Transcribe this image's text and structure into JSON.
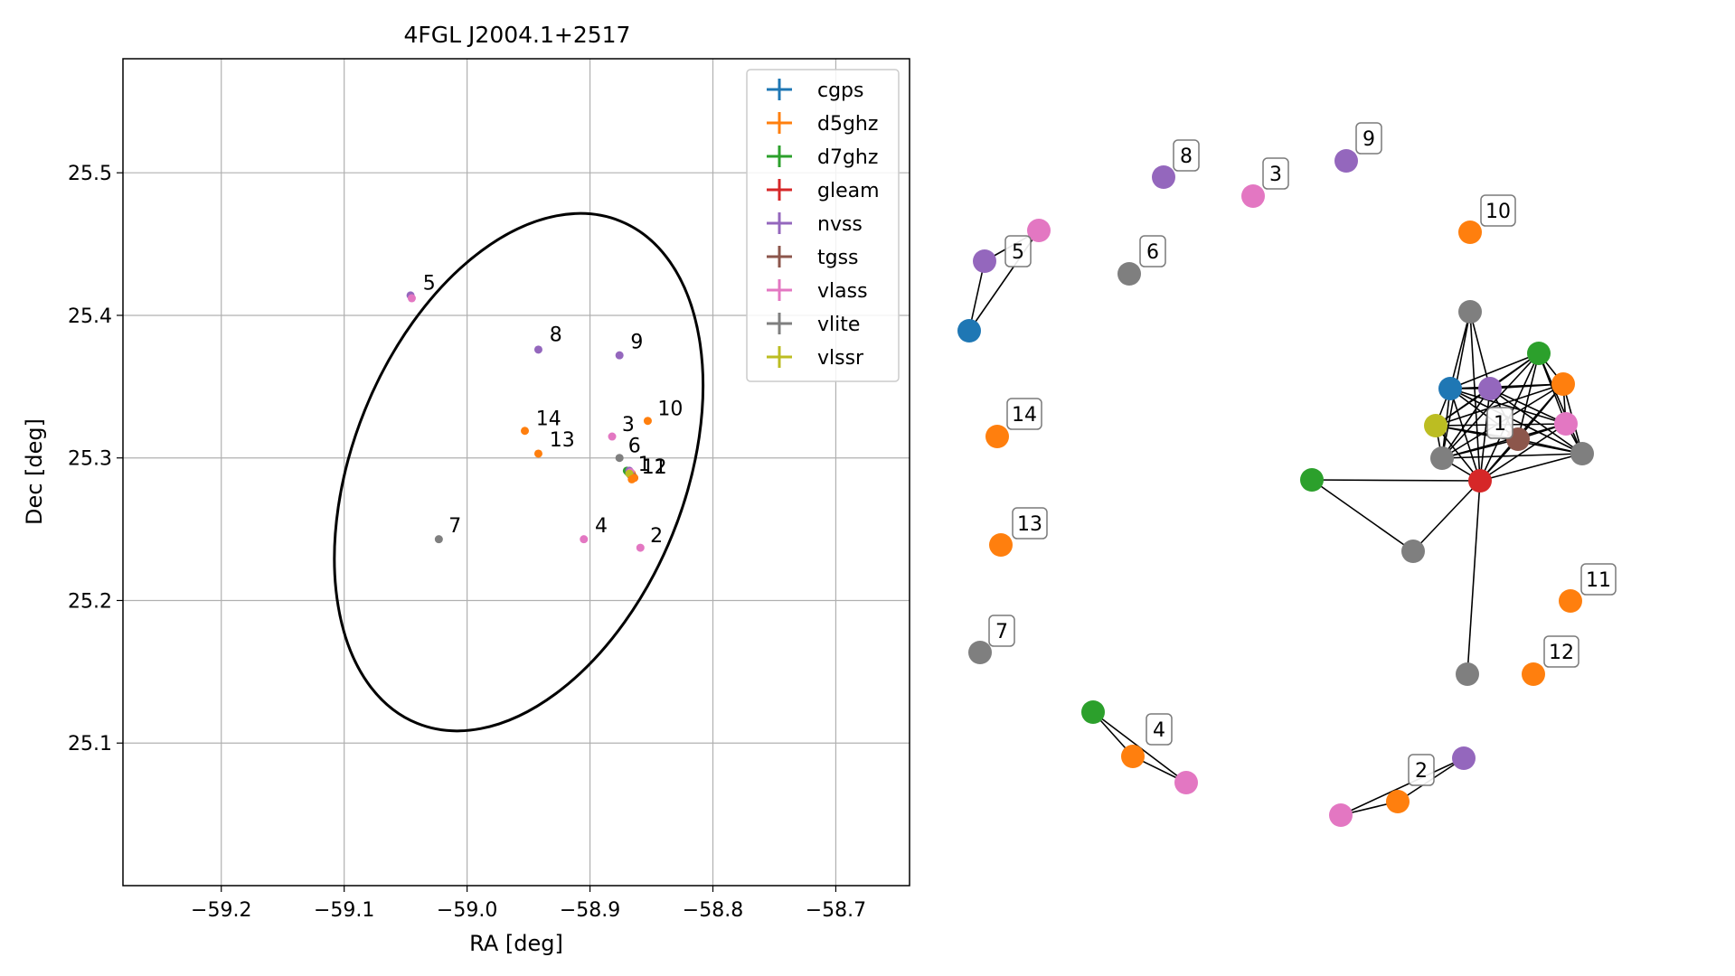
{
  "chart_data": [
    {
      "type": "scatter",
      "title": "4FGL J2004.1+2517",
      "xlabel": "RA [deg]",
      "ylabel": "Dec [deg]",
      "xlim": [
        -59.28,
        -58.64
      ],
      "ylim": [
        25.0,
        25.58
      ],
      "grid": true,
      "legend_position": "top-right",
      "xticks": [
        -59.2,
        -59.1,
        -59.0,
        -58.9,
        -58.8,
        -58.7
      ],
      "xtick_labels": [
        "−59.2",
        "−59.1",
        "−59.0",
        "−58.9",
        "−58.8",
        "−58.7"
      ],
      "yticks": [
        25.1,
        25.2,
        25.3,
        25.4,
        25.5
      ],
      "ytick_labels": [
        "25.1",
        "25.2",
        "25.3",
        "25.4",
        "25.5"
      ],
      "series": [
        {
          "name": "cgps",
          "color": "#1f77b4"
        },
        {
          "name": "d5ghz",
          "color": "#ff7f0e"
        },
        {
          "name": "d7ghz",
          "color": "#2ca02c"
        },
        {
          "name": "gleam",
          "color": "#d62728"
        },
        {
          "name": "nvss",
          "color": "#9467bd"
        },
        {
          "name": "tgss",
          "color": "#8c564b"
        },
        {
          "name": "vlass",
          "color": "#e377c2"
        },
        {
          "name": "vlite",
          "color": "#7f7f7f"
        },
        {
          "name": "vlssr",
          "color": "#bcbd22"
        }
      ],
      "points": [
        {
          "x": -58.869,
          "y": 25.29,
          "series": "cgps"
        },
        {
          "x": -58.866,
          "y": 25.289,
          "series": "d5ghz"
        },
        {
          "x": -58.87,
          "y": 25.291,
          "series": "d7ghz"
        },
        {
          "x": -58.864,
          "y": 25.286,
          "series": "gleam"
        },
        {
          "x": -58.868,
          "y": 25.291,
          "series": "nvss"
        },
        {
          "x": -58.865,
          "y": 25.287,
          "series": "tgss"
        },
        {
          "x": -58.867,
          "y": 25.29,
          "series": "vlass"
        },
        {
          "x": -58.867,
          "y": 25.288,
          "series": "vlite"
        },
        {
          "x": -58.868,
          "y": 25.289,
          "series": "vlssr"
        },
        {
          "x": -59.046,
          "y": 25.414,
          "series": "nvss"
        },
        {
          "x": -59.045,
          "y": 25.412,
          "series": "vlass"
        },
        {
          "x": -58.942,
          "y": 25.376,
          "series": "nvss"
        },
        {
          "x": -58.876,
          "y": 25.372,
          "series": "nvss"
        },
        {
          "x": -58.853,
          "y": 25.326,
          "series": "d5ghz"
        },
        {
          "x": -58.953,
          "y": 25.319,
          "series": "d5ghz"
        },
        {
          "x": -58.942,
          "y": 25.303,
          "series": "d5ghz"
        },
        {
          "x": -58.882,
          "y": 25.315,
          "series": "vlass"
        },
        {
          "x": -58.876,
          "y": 25.3,
          "series": "vlite"
        },
        {
          "x": -58.866,
          "y": 25.285,
          "series": "d5ghz"
        },
        {
          "x": -58.864,
          "y": 25.286,
          "series": "d5ghz"
        },
        {
          "x": -59.023,
          "y": 25.243,
          "series": "vlite"
        },
        {
          "x": -58.905,
          "y": 25.243,
          "series": "vlass"
        },
        {
          "x": -58.859,
          "y": 25.237,
          "series": "vlass"
        }
      ],
      "point_labels": [
        {
          "text": "5",
          "x": -59.036,
          "y": 25.418
        },
        {
          "text": "8",
          "x": -58.933,
          "y": 25.382
        },
        {
          "text": "9",
          "x": -58.867,
          "y": 25.377
        },
        {
          "text": "10",
          "x": -58.845,
          "y": 25.33
        },
        {
          "text": "14",
          "x": -58.944,
          "y": 25.323
        },
        {
          "text": "3",
          "x": -58.874,
          "y": 25.319
        },
        {
          "text": "13",
          "x": -58.933,
          "y": 25.308
        },
        {
          "text": "6",
          "x": -58.869,
          "y": 25.304
        },
        {
          "text": "1",
          "x": -58.861,
          "y": 25.291
        },
        {
          "text": "11",
          "x": -58.858,
          "y": 25.289
        },
        {
          "text": "12",
          "x": -58.858,
          "y": 25.289
        },
        {
          "text": "7",
          "x": -59.015,
          "y": 25.248
        },
        {
          "text": "4",
          "x": -58.896,
          "y": 25.248
        },
        {
          "text": "2",
          "x": -58.851,
          "y": 25.241
        }
      ],
      "ellipse": {
        "center_ra": -58.958,
        "center_dec": 25.29,
        "semi_ra": 0.135,
        "semi_dec": 0.19,
        "tilt_deg": 22
      }
    },
    {
      "type": "network",
      "nodes": [
        {
          "id": "cgps-1",
          "series": "cgps"
        },
        {
          "id": "cgps-5",
          "series": "cgps"
        },
        {
          "id": "d5-1",
          "series": "d5ghz"
        },
        {
          "id": "d5-10",
          "series": "d5ghz"
        },
        {
          "id": "d5-14",
          "series": "d5ghz"
        },
        {
          "id": "d5-13",
          "series": "d5ghz"
        },
        {
          "id": "d5-11",
          "series": "d5ghz"
        },
        {
          "id": "d5-12",
          "series": "d5ghz"
        },
        {
          "id": "d5-4",
          "series": "d5ghz"
        },
        {
          "id": "d5-2",
          "series": "d5ghz"
        },
        {
          "id": "d7-1",
          "series": "d7ghz"
        },
        {
          "id": "d7-1b",
          "series": "d7ghz"
        },
        {
          "id": "d7-4",
          "series": "d7ghz"
        },
        {
          "id": "gleam-1",
          "series": "gleam"
        },
        {
          "id": "nvss-1",
          "series": "nvss"
        },
        {
          "id": "nvss-5",
          "series": "nvss"
        },
        {
          "id": "nvss-8",
          "series": "nvss"
        },
        {
          "id": "nvss-9",
          "series": "nvss"
        },
        {
          "id": "nvss-2",
          "series": "nvss"
        },
        {
          "id": "tgss-1",
          "series": "tgss"
        },
        {
          "id": "vlass-1",
          "series": "vlass"
        },
        {
          "id": "vlass-5",
          "series": "vlass"
        },
        {
          "id": "vlass-3",
          "series": "vlass"
        },
        {
          "id": "vlass-4",
          "series": "vlass"
        },
        {
          "id": "vlass-2",
          "series": "vlass"
        },
        {
          "id": "vlite-1a",
          "series": "vlite"
        },
        {
          "id": "vlite-1b",
          "series": "vlite"
        },
        {
          "id": "vlite-1c",
          "series": "vlite"
        },
        {
          "id": "vlite-1d",
          "series": "vlite"
        },
        {
          "id": "vlite-1e",
          "series": "vlite"
        },
        {
          "id": "vlite-6",
          "series": "vlite"
        },
        {
          "id": "vlite-7",
          "series": "vlite"
        },
        {
          "id": "vlssr-1",
          "series": "vlssr"
        }
      ],
      "node_labels": [
        "1",
        "2",
        "3",
        "4",
        "5",
        "6",
        "7",
        "8",
        "9",
        "10",
        "11",
        "12",
        "13",
        "14"
      ],
      "edges": [
        [
          "cgps-5",
          "nvss-5"
        ],
        [
          "cgps-5",
          "vlass-5"
        ],
        [
          "nvss-5",
          "vlass-5"
        ],
        [
          "d7-4",
          "d5-4"
        ],
        [
          "d7-4",
          "vlass-4"
        ],
        [
          "d5-4",
          "vlass-4"
        ],
        [
          "vlass-2",
          "d5-2"
        ],
        [
          "vlass-2",
          "nvss-2"
        ],
        [
          "d5-2",
          "nvss-2"
        ],
        [
          "gleam-1",
          "cgps-1"
        ],
        [
          "gleam-1",
          "nvss-1"
        ],
        [
          "gleam-1",
          "d7-1"
        ],
        [
          "gleam-1",
          "d5-1"
        ],
        [
          "gleam-1",
          "vlass-1"
        ],
        [
          "gleam-1",
          "vlssr-1"
        ],
        [
          "gleam-1",
          "tgss-1"
        ],
        [
          "gleam-1",
          "vlite-1a"
        ],
        [
          "gleam-1",
          "vlite-1b"
        ],
        [
          "gleam-1",
          "vlite-1c"
        ],
        [
          "gleam-1",
          "vlite-1d"
        ],
        [
          "gleam-1",
          "vlite-1e"
        ],
        [
          "gleam-1",
          "d7-1b"
        ],
        [
          "vlite-1d",
          "d7-1b"
        ],
        [
          "cgps-1",
          "nvss-1"
        ],
        [
          "cgps-1",
          "d7-1"
        ],
        [
          "cgps-1",
          "d5-1"
        ],
        [
          "cgps-1",
          "vlass-1"
        ],
        [
          "cgps-1",
          "vlssr-1"
        ],
        [
          "cgps-1",
          "tgss-1"
        ],
        [
          "cgps-1",
          "vlite-1a"
        ],
        [
          "cgps-1",
          "vlite-1b"
        ],
        [
          "cgps-1",
          "vlite-1c"
        ],
        [
          "nvss-1",
          "d7-1"
        ],
        [
          "nvss-1",
          "d5-1"
        ],
        [
          "nvss-1",
          "vlass-1"
        ],
        [
          "nvss-1",
          "vlssr-1"
        ],
        [
          "nvss-1",
          "tgss-1"
        ],
        [
          "nvss-1",
          "vlite-1a"
        ],
        [
          "nvss-1",
          "vlite-1b"
        ],
        [
          "nvss-1",
          "vlite-1c"
        ],
        [
          "d7-1",
          "d5-1"
        ],
        [
          "d7-1",
          "vlass-1"
        ],
        [
          "d7-1",
          "vlssr-1"
        ],
        [
          "d7-1",
          "tgss-1"
        ],
        [
          "d7-1",
          "vlite-1b"
        ],
        [
          "d7-1",
          "vlite-1c"
        ],
        [
          "d5-1",
          "vlass-1"
        ],
        [
          "d5-1",
          "vlssr-1"
        ],
        [
          "d5-1",
          "tgss-1"
        ],
        [
          "d5-1",
          "vlite-1b"
        ],
        [
          "d5-1",
          "vlite-1c"
        ],
        [
          "vlass-1",
          "vlssr-1"
        ],
        [
          "vlass-1",
          "tgss-1"
        ],
        [
          "vlass-1",
          "vlite-1b"
        ],
        [
          "vlass-1",
          "vlite-1c"
        ],
        [
          "vlssr-1",
          "tgss-1"
        ],
        [
          "vlssr-1",
          "vlite-1b"
        ],
        [
          "vlssr-1",
          "vlite-1c"
        ],
        [
          "tgss-1",
          "vlite-1b"
        ],
        [
          "tgss-1",
          "vlite-1c"
        ],
        [
          "vlite-1a",
          "vlite-1b"
        ],
        [
          "vlite-1b",
          "vlite-1c"
        ]
      ]
    }
  ]
}
